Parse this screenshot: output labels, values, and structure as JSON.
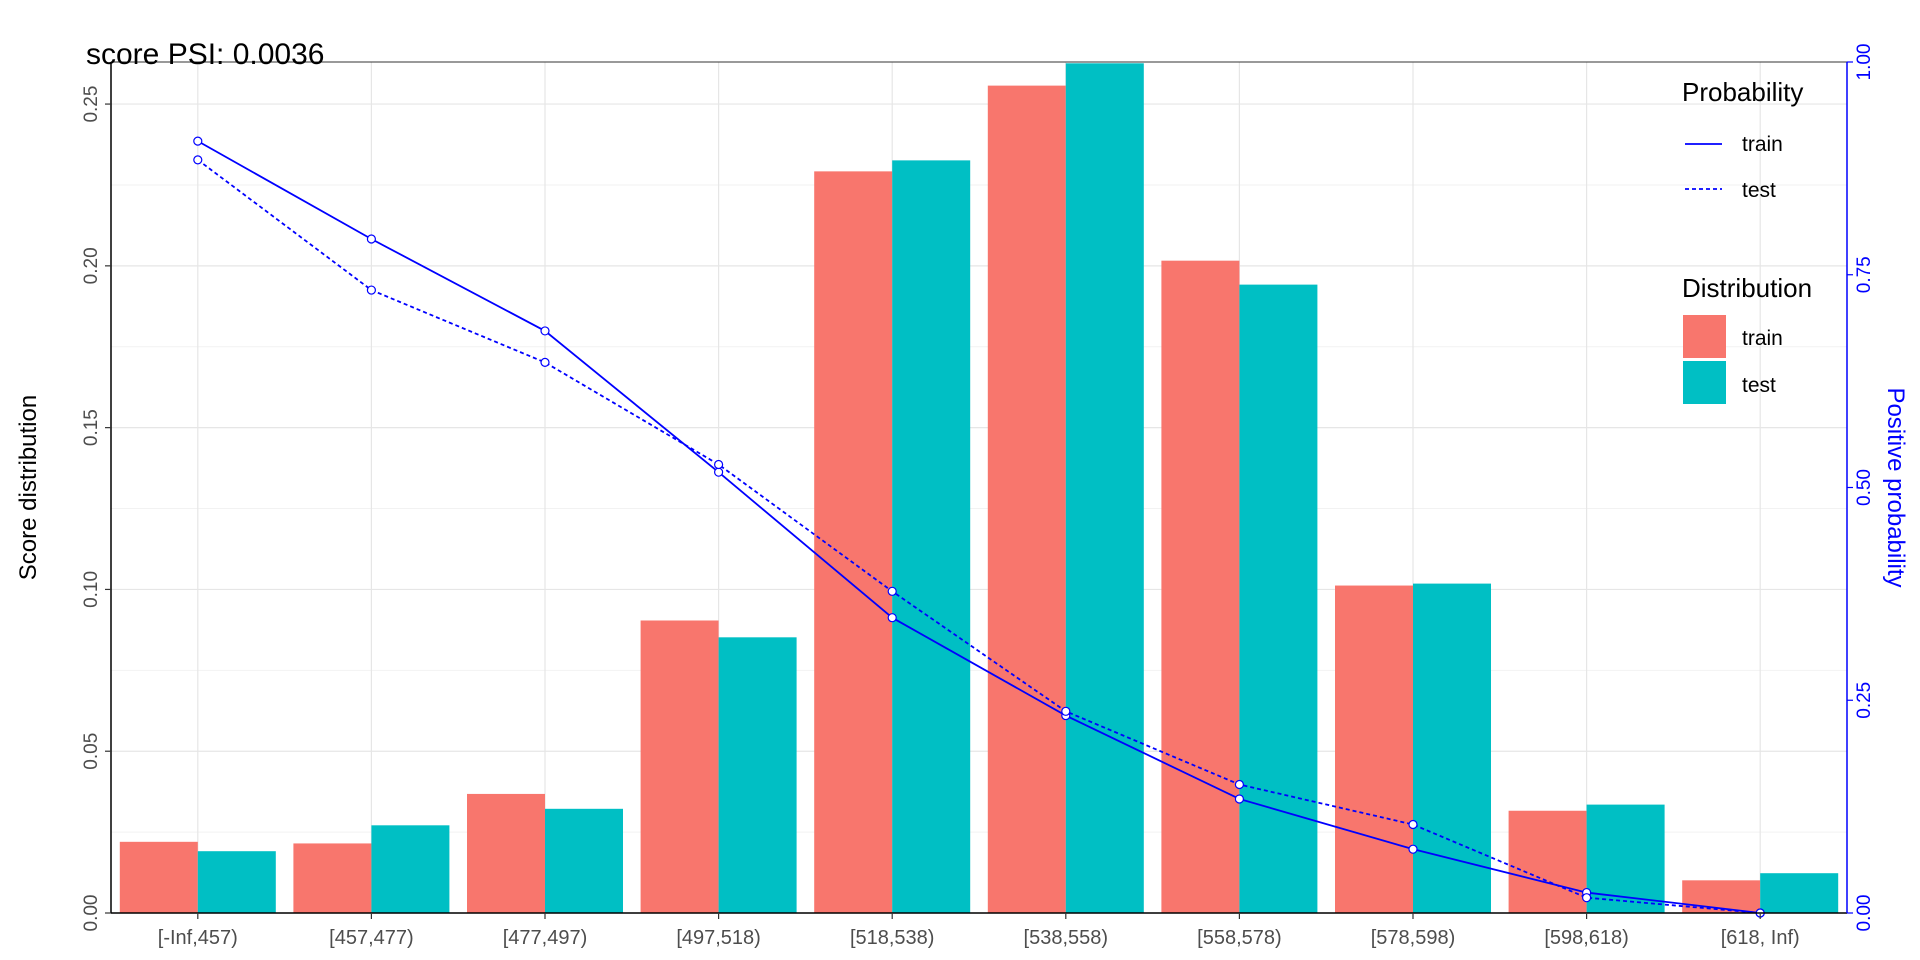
{
  "chart_data": {
    "type": "bar",
    "title": "score PSI: 0.0036",
    "categories": [
      "[-Inf,457)",
      "[457,477)",
      "[477,497)",
      "[497,518)",
      "[518,538)",
      "[538,558)",
      "[558,578)",
      "[578,598)",
      "[598,618)",
      "[618, Inf)"
    ],
    "ylabel": "Score distribution",
    "ylabel_right": "Positive probability",
    "ylim": [
      0,
      0.263
    ],
    "ylim_right": [
      0,
      1.0
    ],
    "yticks": [
      "0.00",
      "0.05",
      "0.10",
      "0.15",
      "0.20",
      "0.25"
    ],
    "yticks_right": [
      "0.00",
      "0.25",
      "0.50",
      "0.75",
      "1.00"
    ],
    "grid": true,
    "series": [
      {
        "name": "train",
        "kind": "bar",
        "axis": "left",
        "color": "#F8766D",
        "values": [
          0.022,
          0.0215,
          0.0368,
          0.0904,
          0.2292,
          0.2557,
          0.2016,
          0.1012,
          0.0316,
          0.0101
        ]
      },
      {
        "name": "test",
        "kind": "bar",
        "axis": "left",
        "color": "#00BFC4",
        "values": [
          0.0191,
          0.0271,
          0.0322,
          0.0852,
          0.2326,
          0.2626,
          0.1942,
          0.1018,
          0.0335,
          0.0123
        ]
      },
      {
        "name": "train",
        "kind": "line",
        "axis": "right",
        "color": "#0000FF",
        "dash": "solid",
        "values": [
          0.907,
          0.792,
          0.684,
          0.518,
          0.347,
          0.232,
          0.134,
          0.075,
          0.024,
          0.0
        ]
      },
      {
        "name": "test",
        "kind": "line",
        "axis": "right",
        "color": "#0000FF",
        "dash": "dotted",
        "values": [
          0.885,
          0.732,
          0.647,
          0.527,
          0.378,
          0.237,
          0.151,
          0.104,
          0.018,
          0.0
        ]
      }
    ],
    "legend": {
      "placement": "top-right",
      "probability_title": "Probability",
      "probability_items": [
        "train",
        "test"
      ],
      "distribution_title": "Distribution",
      "distribution_items": [
        "train",
        "test"
      ]
    }
  }
}
